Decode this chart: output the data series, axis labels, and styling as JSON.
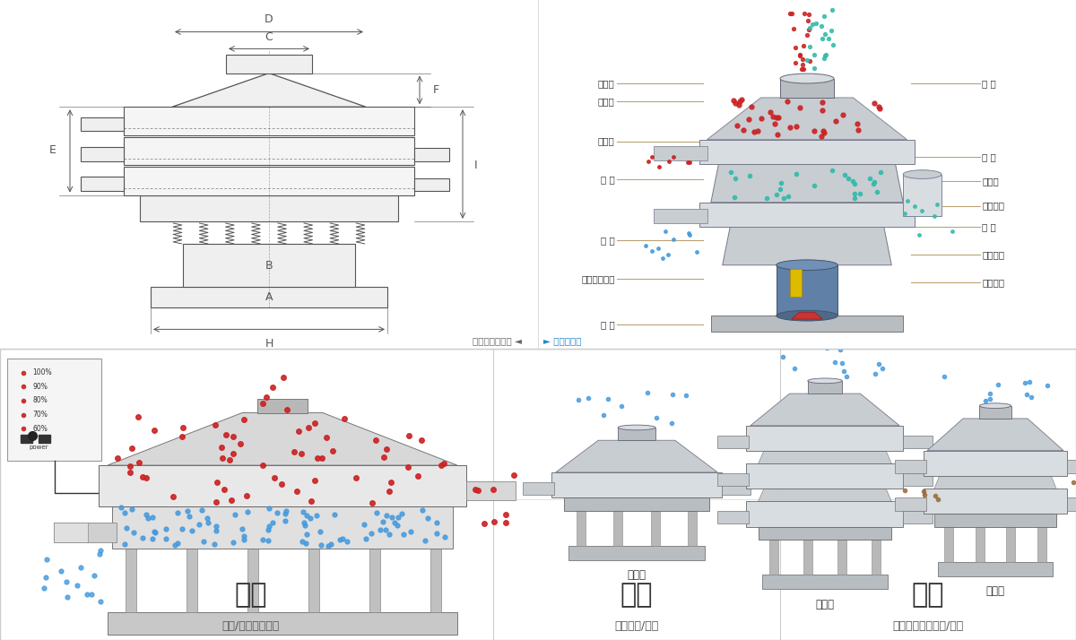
{
  "bg_color": "#ffffff",
  "top_left_panel": {
    "dimension_labels": [
      "A",
      "B",
      "C",
      "D",
      "E",
      "F",
      "H",
      "I"
    ],
    "line_color": "#555555"
  },
  "top_right_panel": {
    "left_labels": [
      "进料口",
      "防尘盖",
      "出料口",
      "束 环",
      "弹 簧",
      "运输固定螺栓",
      "机 座"
    ],
    "right_labels": [
      "筛 网",
      "网 架",
      "加重块",
      "上部重锤",
      "筛 盘",
      "振动电机",
      "下部重锤"
    ]
  },
  "separator_text_left": "外形尺寸示意图",
  "separator_arrow_left": "◄",
  "separator_arrow_right": "►",
  "separator_text_right": "结构示意图",
  "label_line_color": "#b8a070",
  "bot_col1_machine": "单层式",
  "bot_col2_machine": "三层式",
  "bot_col3_machine": "双层式",
  "bot_label1": "分级",
  "bot_sub1": "颗粒/粉末准确分级",
  "bot_label2": "过滤",
  "bot_sub2": "去除异物/结块",
  "bot_label3": "除杂",
  "bot_sub3": "去除液体中的颗粒/异物",
  "ctrl_labels": [
    "100%",
    "90%",
    "80%",
    "70%",
    "60%"
  ],
  "red_color": "#cc2222",
  "blue_color": "#4499dd",
  "green_color": "#33bbaa",
  "brown_color": "#996633",
  "machine_gray1": "#c8cdd2",
  "machine_gray2": "#d8dde2",
  "machine_gray3": "#b8bdc2",
  "machine_dark": "#888890"
}
